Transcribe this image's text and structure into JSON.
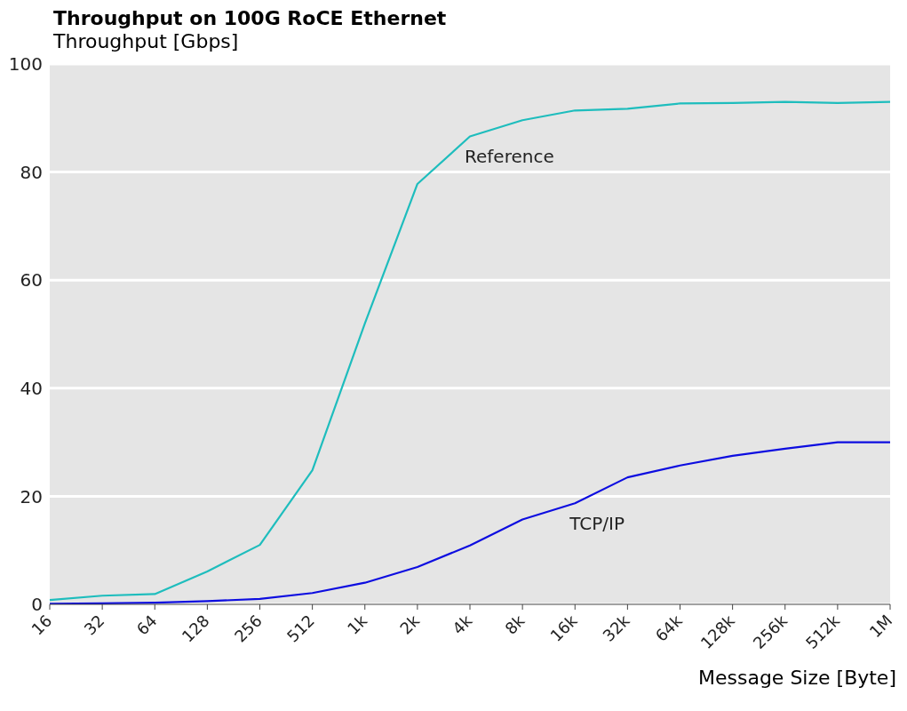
{
  "chart_data": {
    "type": "line",
    "title": "Throughput on 100G RoCE Ethernet",
    "ylabel": "Throughput [Gbps]",
    "xlabel": "Message Size [Byte]",
    "categories": [
      "16",
      "32",
      "64",
      "128",
      "256",
      "512",
      "1k",
      "2k",
      "4k",
      "8k",
      "16k",
      "32k",
      "64k",
      "128k",
      "256k",
      "512k",
      "1M"
    ],
    "series": [
      {
        "name": "Reference",
        "color": "#1ebdbd",
        "values": [
          0.8,
          1.6,
          1.9,
          6.1,
          11,
          24.8,
          52,
          77.8,
          86.6,
          89.6,
          91.4,
          91.7,
          92.7,
          92.8,
          93,
          92.8,
          93
        ]
      },
      {
        "name": "TCP/IP",
        "color": "#0d0de0",
        "values": [
          0.1,
          0.2,
          0.3,
          0.6,
          1.0,
          2.1,
          4,
          6.9,
          10.9,
          15.7,
          18.7,
          23.5,
          25.7,
          27.5,
          28.8,
          30,
          30
        ]
      }
    ],
    "ylim": [
      0,
      100
    ],
    "yticks": [
      0,
      20,
      40,
      60,
      80,
      100
    ],
    "grid": "y",
    "marker": "none",
    "line_style": "solid"
  }
}
